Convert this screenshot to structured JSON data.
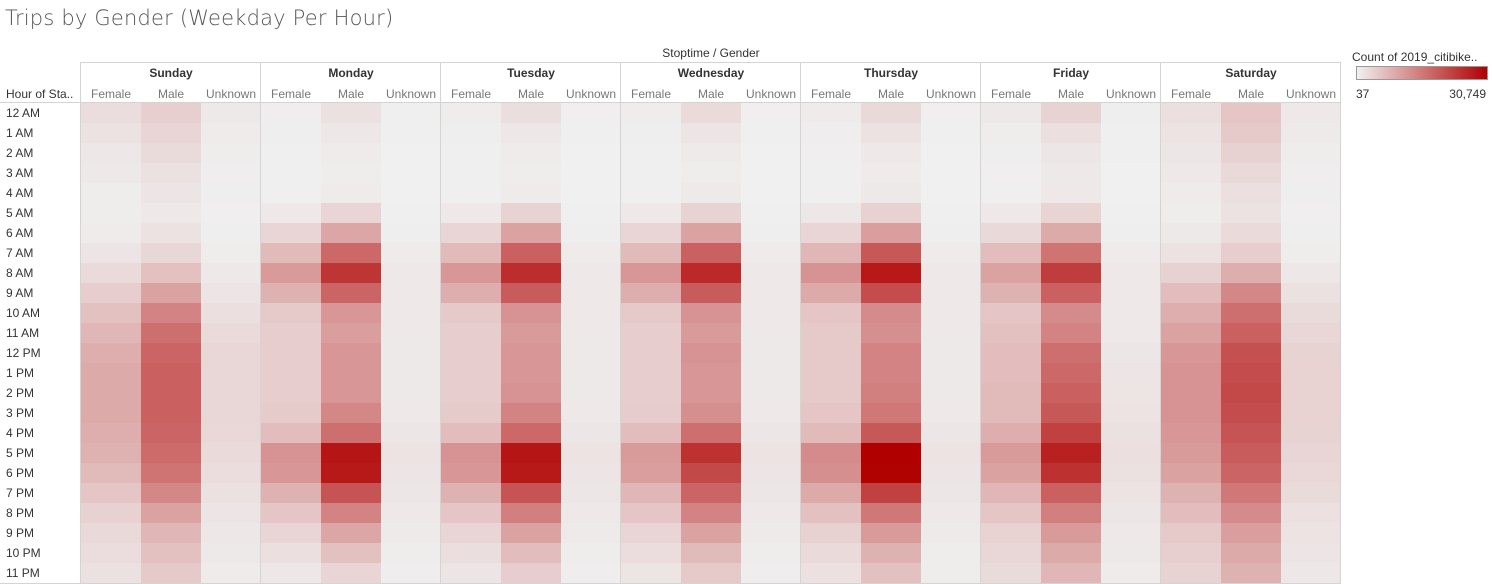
{
  "title": "Trips by Gender (Weekday Per Hour)",
  "column_header": "Stoptime / Gender",
  "row_header": "Hour of Sta..",
  "legend": {
    "title": "Count of 2019_citibike..",
    "min_label": "37",
    "max_label": "30,749",
    "color_low": "#f0f0f0",
    "color_high": "#b00000"
  },
  "chart_data": {
    "type": "heatmap",
    "title": "Trips by Gender (Weekday Per Hour)",
    "xlabel": "Stoptime / Gender",
    "ylabel": "Hour of Sta..",
    "days": [
      "Sunday",
      "Monday",
      "Tuesday",
      "Wednesday",
      "Thursday",
      "Friday",
      "Saturday"
    ],
    "genders": [
      "Female",
      "Male",
      "Unknown"
    ],
    "hours": [
      "12 AM",
      "1 AM",
      "2 AM",
      "3 AM",
      "4 AM",
      "5 AM",
      "6 AM",
      "7 AM",
      "8 AM",
      "9 AM",
      "10 AM",
      "11 AM",
      "12 PM",
      "1 PM",
      "2 PM",
      "3 PM",
      "4 PM",
      "5 PM",
      "6 PM",
      "7 PM",
      "8 PM",
      "9 PM",
      "10 PM",
      "11 PM"
    ],
    "color_range": [
      37,
      30749
    ],
    "values": [
      [
        2500,
        4200,
        900,
        400,
        2000,
        200,
        500,
        2400,
        250,
        500,
        2800,
        250,
        700,
        3000,
        250,
        900,
        3800,
        300,
        2200,
        5500,
        1000
      ],
      [
        1800,
        3500,
        700,
        300,
        1200,
        120,
        300,
        1200,
        120,
        300,
        1500,
        130,
        400,
        1800,
        140,
        500,
        2200,
        180,
        1700,
        5000,
        800
      ],
      [
        1200,
        2700,
        500,
        200,
        700,
        80,
        200,
        700,
        80,
        200,
        800,
        80,
        250,
        1000,
        90,
        300,
        1300,
        110,
        1300,
        4000,
        600
      ],
      [
        900,
        2000,
        400,
        150,
        500,
        60,
        150,
        500,
        60,
        150,
        600,
        60,
        180,
        700,
        60,
        250,
        900,
        80,
        1000,
        3000,
        450
      ],
      [
        600,
        1400,
        300,
        150,
        700,
        50,
        150,
        700,
        50,
        150,
        800,
        50,
        180,
        900,
        50,
        200,
        1000,
        60,
        700,
        2200,
        350
      ],
      [
        500,
        1100,
        250,
        1100,
        3500,
        150,
        1100,
        3700,
        150,
        1100,
        3800,
        150,
        1200,
        4000,
        150,
        1100,
        3600,
        150,
        600,
        1800,
        250
      ],
      [
        700,
        1800,
        300,
        3500,
        9500,
        350,
        3500,
        10000,
        350,
        3500,
        10000,
        350,
        3500,
        10500,
        350,
        3000,
        9000,
        350,
        900,
        2800,
        350
      ],
      [
        1400,
        3300,
        500,
        7000,
        17500,
        700,
        7000,
        18500,
        700,
        7000,
        18500,
        700,
        7500,
        19500,
        700,
        6500,
        16000,
        700,
        1800,
        4500,
        550
      ],
      [
        2800,
        6000,
        1000,
        11000,
        24000,
        1100,
        11500,
        25000,
        1100,
        11500,
        25500,
        1100,
        12000,
        27500,
        1100,
        10000,
        23000,
        1100,
        4000,
        8500,
        1200
      ],
      [
        4500,
        10000,
        1500,
        8000,
        18000,
        1000,
        8500,
        19000,
        1000,
        8500,
        19000,
        1000,
        9000,
        21000,
        1000,
        8000,
        18500,
        1000,
        6500,
        13500,
        1900
      ],
      [
        6000,
        14000,
        2200,
        5000,
        11500,
        1000,
        5000,
        12000,
        1000,
        5000,
        12000,
        1000,
        5500,
        13000,
        1000,
        5500,
        13000,
        1000,
        8500,
        16500,
        2700
      ],
      [
        7500,
        16500,
        2800,
        4500,
        10500,
        900,
        4500,
        11000,
        900,
        4500,
        11000,
        900,
        5000,
        12500,
        900,
        6000,
        14000,
        1100,
        10000,
        18500,
        3400
      ],
      [
        8500,
        18000,
        3200,
        4500,
        11500,
        900,
        4500,
        11500,
        900,
        4500,
        12000,
        900,
        5000,
        14000,
        900,
        6500,
        16500,
        1300,
        11500,
        20500,
        3700
      ],
      [
        9000,
        18500,
        3400,
        4500,
        11500,
        900,
        4500,
        11500,
        900,
        4500,
        11500,
        900,
        5000,
        14000,
        900,
        6500,
        17500,
        1500,
        12000,
        21000,
        3900
      ],
      [
        9000,
        18500,
        3400,
        4500,
        11500,
        900,
        4500,
        12000,
        900,
        4500,
        11500,
        900,
        5000,
        14500,
        900,
        7000,
        18500,
        1600,
        12000,
        21500,
        3900
      ],
      [
        9000,
        18500,
        3400,
        4800,
        13500,
        1000,
        4800,
        14000,
        1000,
        4600,
        12500,
        1000,
        5500,
        15500,
        1000,
        7000,
        19500,
        1700,
        12000,
        21000,
        3900
      ],
      [
        8500,
        18000,
        3100,
        6500,
        16500,
        1300,
        6500,
        17500,
        1300,
        6500,
        16500,
        1300,
        7000,
        19500,
        1300,
        8500,
        22500,
        2000,
        11500,
        20000,
        3700
      ],
      [
        8000,
        17000,
        2900,
        12000,
        28000,
        1700,
        12000,
        28000,
        1700,
        11000,
        24500,
        1700,
        13000,
        30749,
        1700,
        11000,
        26500,
        2200,
        11000,
        19000,
        3500
      ],
      [
        7000,
        16000,
        2500,
        11500,
        27500,
        1500,
        11500,
        27500,
        1500,
        10500,
        21500,
        1500,
        12500,
        30500,
        1500,
        10000,
        24500,
        1900,
        10000,
        18000,
        3100
      ],
      [
        5500,
        13500,
        2000,
        8000,
        20000,
        1300,
        8000,
        20000,
        1300,
        7500,
        18000,
        1300,
        9000,
        22500,
        1300,
        7500,
        18500,
        1700,
        8000,
        15500,
        2700
      ],
      [
        4000,
        10000,
        1500,
        5500,
        14000,
        1000,
        5500,
        14500,
        1000,
        5500,
        14000,
        1000,
        6000,
        15500,
        1000,
        5500,
        14500,
        1300,
        6500,
        13000,
        2100
      ],
      [
        3000,
        7500,
        1200,
        3500,
        9500,
        800,
        3500,
        10000,
        800,
        3500,
        10000,
        800,
        4000,
        11000,
        800,
        3900,
        11000,
        1100,
        5000,
        10500,
        1700
      ],
      [
        2500,
        6000,
        900,
        2200,
        6000,
        600,
        2400,
        6500,
        600,
        2500,
        7000,
        600,
        2800,
        8000,
        600,
        3300,
        9000,
        900,
        4300,
        9000,
        1400
      ],
      [
        2000,
        5000,
        700,
        1200,
        3500,
        400,
        1400,
        4500,
        400,
        1600,
        5000,
        400,
        2100,
        6000,
        500,
        2700,
        7500,
        700,
        3700,
        8000,
        1200
      ]
    ]
  }
}
